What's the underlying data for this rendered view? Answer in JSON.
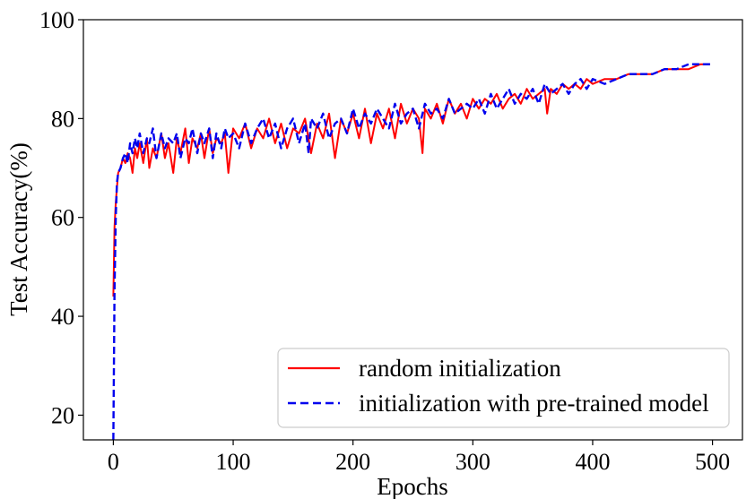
{
  "chart_data": {
    "type": "line",
    "title": "",
    "xlabel": "Epochs",
    "ylabel": "Test Accuracy(%)",
    "xlim": [
      -25,
      525
    ],
    "ylim": [
      15,
      100
    ],
    "xticks": [
      0,
      100,
      200,
      300,
      400,
      500
    ],
    "yticks": [
      20,
      40,
      60,
      80,
      100
    ],
    "grid": false,
    "legend_position": "bottom-right",
    "series": [
      {
        "name": "random initialization",
        "color": "#ff0000",
        "style": "solid",
        "x": [
          0,
          1,
          2,
          3,
          4,
          6,
          8,
          10,
          12,
          14,
          16,
          18,
          20,
          22,
          25,
          28,
          30,
          33,
          36,
          40,
          43,
          46,
          50,
          53,
          56,
          60,
          63,
          66,
          70,
          73,
          76,
          80,
          83,
          86,
          90,
          93,
          96,
          100,
          105,
          110,
          115,
          120,
          125,
          130,
          135,
          140,
          145,
          150,
          155,
          160,
          165,
          170,
          175,
          180,
          185,
          190,
          195,
          200,
          205,
          210,
          215,
          220,
          225,
          230,
          235,
          240,
          245,
          250,
          255,
          258,
          260,
          265,
          270,
          275,
          280,
          285,
          290,
          295,
          300,
          305,
          310,
          315,
          320,
          325,
          330,
          335,
          340,
          345,
          350,
          355,
          360,
          362,
          365,
          370,
          375,
          380,
          385,
          390,
          395,
          400,
          410,
          420,
          430,
          440,
          450,
          460,
          470,
          480,
          490,
          498
        ],
        "y": [
          44,
          58,
          63,
          66,
          69,
          70,
          72,
          71,
          73,
          72,
          69,
          74,
          72,
          75,
          71,
          76,
          70,
          74,
          72,
          77,
          72,
          75,
          69,
          76,
          73,
          78,
          71,
          76,
          74,
          77,
          72,
          78,
          73,
          76,
          75,
          77,
          69,
          78,
          76,
          79,
          74,
          78,
          76,
          80,
          75,
          79,
          74,
          78,
          77,
          80,
          73,
          79,
          76,
          81,
          72,
          80,
          77,
          81,
          76,
          82,
          75,
          81,
          78,
          82,
          76,
          83,
          79,
          82,
          80,
          73,
          82,
          80,
          83,
          79,
          84,
          81,
          83,
          80,
          84,
          82,
          84,
          83,
          85,
          82,
          84,
          85,
          83,
          86,
          84,
          85,
          86,
          81,
          86,
          85,
          87,
          86,
          87,
          86,
          88,
          87,
          88,
          88,
          89,
          89,
          89,
          90,
          90,
          90,
          91,
          91
        ]
      },
      {
        "name": "initialization with pre-trained model",
        "color": "#0000ee",
        "style": "dashed",
        "x": [
          0,
          1,
          2,
          3,
          4,
          6,
          8,
          10,
          12,
          14,
          16,
          18,
          20,
          22,
          25,
          28,
          30,
          33,
          36,
          40,
          43,
          46,
          50,
          53,
          56,
          60,
          63,
          66,
          70,
          73,
          76,
          80,
          83,
          86,
          90,
          93,
          96,
          100,
          105,
          110,
          115,
          120,
          125,
          130,
          135,
          140,
          145,
          150,
          155,
          160,
          163,
          165,
          170,
          175,
          180,
          185,
          190,
          195,
          200,
          205,
          210,
          215,
          220,
          225,
          230,
          235,
          240,
          245,
          250,
          255,
          260,
          265,
          270,
          275,
          280,
          285,
          290,
          295,
          300,
          305,
          310,
          315,
          320,
          325,
          330,
          335,
          340,
          345,
          350,
          355,
          360,
          365,
          370,
          375,
          380,
          385,
          390,
          395,
          400,
          410,
          420,
          430,
          440,
          450,
          460,
          470,
          480,
          490,
          498
        ],
        "y": [
          15,
          45,
          60,
          67,
          69,
          70,
          72,
          73,
          71,
          75,
          73,
          76,
          74,
          77,
          73,
          76,
          75,
          78,
          72,
          77,
          74,
          76,
          75,
          77,
          72,
          76,
          75,
          78,
          73,
          77,
          75,
          78,
          72,
          77,
          74,
          78,
          76,
          77,
          74,
          79,
          75,
          78,
          80,
          76,
          79,
          74,
          78,
          80,
          75,
          79,
          73,
          80,
          78,
          81,
          76,
          79,
          80,
          77,
          82,
          78,
          81,
          79,
          82,
          80,
          78,
          83,
          79,
          81,
          82,
          78,
          83,
          81,
          82,
          80,
          84,
          81,
          82,
          83,
          82,
          84,
          81,
          85,
          82,
          84,
          86,
          83,
          85,
          84,
          86,
          83,
          87,
          85,
          86,
          87,
          85,
          87,
          88,
          86,
          88,
          87,
          88,
          89,
          89,
          89,
          90,
          90,
          91,
          91,
          91
        ]
      }
    ]
  }
}
